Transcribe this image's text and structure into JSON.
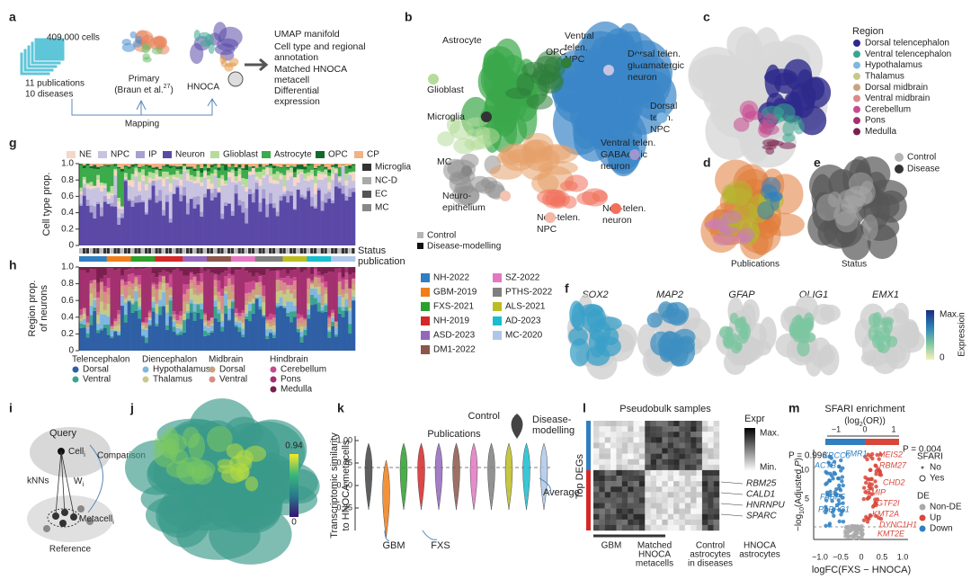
{
  "panel_labels": [
    "a",
    "b",
    "c",
    "d",
    "e",
    "f",
    "g",
    "h",
    "i",
    "j",
    "k",
    "l",
    "m"
  ],
  "a": {
    "cells": "409,000 cells",
    "sources": [
      "11 publications",
      "10 diseases"
    ],
    "primary": "Primary",
    "primary_ref": [
      "(Braun et al.",
      "27",
      ")"
    ],
    "hnoca": "HNOCA",
    "mapping": "Mapping",
    "outputs": [
      "UMAP manifold",
      "Cell type and regional",
      "annotation",
      "Matched HNOCA",
      "metacell",
      "Differential",
      "expression"
    ]
  },
  "b": {
    "labels": [
      "Astrocyte",
      "OPC",
      "Ventral",
      "telen.",
      "NPC",
      "Dorsal telen.",
      "glutamatergic",
      "neuron",
      "Glioblast",
      "Microglia",
      "Dorsal",
      "telen.",
      "NPC",
      "Ventral telen.",
      "GABAergic",
      "neuron",
      "MC",
      "Neuro-",
      "epithelium",
      "Non-telen.",
      "NPC",
      "Non-telen.",
      "neuron"
    ],
    "status_legend": [
      {
        "name": "Control",
        "color": "#b5b5b5"
      },
      {
        "name": "Disease-modelling",
        "color": "#111111"
      }
    ]
  },
  "c": {
    "title": "Region",
    "items": [
      {
        "name": "Dorsal telencephalon",
        "color": "#2e2a8c"
      },
      {
        "name": "Ventral telencephalon",
        "color": "#3aa58f"
      },
      {
        "name": "Hypothalamus",
        "color": "#7fb7e0"
      },
      {
        "name": "Thalamus",
        "color": "#c7c98a"
      },
      {
        "name": "Dorsal midbrain",
        "color": "#c9a37d"
      },
      {
        "name": "Ventral midbrain",
        "color": "#d98a8a"
      },
      {
        "name": "Cerebellum",
        "color": "#c94b8f"
      },
      {
        "name": "Pons",
        "color": "#a3306f"
      },
      {
        "name": "Medulla",
        "color": "#7a1f4d"
      }
    ]
  },
  "d": {
    "caption": "Publications"
  },
  "e": {
    "caption": "Status",
    "legend": [
      {
        "name": "Control",
        "color": "#b5b5b5"
      },
      {
        "name": "Disease",
        "color": "#333333"
      }
    ]
  },
  "f": {
    "genes": [
      "SOX2",
      "MAP2",
      "GFAP",
      "OLIG1",
      "EMX1"
    ],
    "max": "Max.",
    "zero": "0",
    "colorbar_label": "Expression"
  },
  "g": {
    "y_label": "Cell type prop.",
    "yticks": [
      "0",
      "0.2",
      "0.4",
      "0.6",
      "0.8",
      "1.0"
    ],
    "legend_top": [
      {
        "name": "NE",
        "color": "#f6d7c8"
      },
      {
        "name": "NPC",
        "color": "#c8c3e0"
      },
      {
        "name": "IP",
        "color": "#a89fd2"
      },
      {
        "name": "Neuron",
        "color": "#5b49a6"
      },
      {
        "name": "Glioblast",
        "color": "#b5dc9a"
      },
      {
        "name": "Astrocyte",
        "color": "#3cab4a"
      },
      {
        "name": "OPC",
        "color": "#0d6b2e"
      },
      {
        "name": "CP",
        "color": "#f4b183"
      }
    ],
    "legend_side": [
      {
        "name": "Microglia",
        "color": "#333333"
      },
      {
        "name": "NC-D",
        "color": "#aaaaaa"
      },
      {
        "name": "EC",
        "color": "#555555"
      },
      {
        "name": "MC",
        "color": "#888888"
      }
    ],
    "status": "Status",
    "publication": "publication"
  },
  "h": {
    "y_label": [
      "Region prop.",
      "of neurons"
    ],
    "yticks": [
      "0",
      "0.2",
      "0.4",
      "0.6",
      "0.8",
      "1.0"
    ],
    "groups": [
      {
        "name": "Telencephalon",
        "items": [
          {
            "name": "Dorsal",
            "color": "#2f5fa5"
          },
          {
            "name": "Ventral",
            "color": "#3aa58f"
          }
        ]
      },
      {
        "name": "Diencephalon",
        "items": [
          {
            "name": "Hypothalamus",
            "color": "#7fb7e0"
          },
          {
            "name": "Thalamus",
            "color": "#c7c98a"
          }
        ]
      },
      {
        "name": "Midbrain",
        "items": [
          {
            "name": "Dorsal",
            "color": "#c9a37d"
          },
          {
            "name": "Ventral",
            "color": "#d98a8a"
          }
        ]
      },
      {
        "name": "Hindbrain",
        "items": [
          {
            "name": "Cerebellum",
            "color": "#c94b8f"
          },
          {
            "name": "Pons",
            "color": "#a3306f"
          },
          {
            "name": "Medulla",
            "color": "#7a1f4d"
          }
        ]
      }
    ]
  },
  "publications": [
    {
      "name": "NH-2022",
      "color": "#2f7fc1"
    },
    {
      "name": "GBM-2019",
      "color": "#f07f1a"
    },
    {
      "name": "FXS-2021",
      "color": "#2ca02c"
    },
    {
      "name": "NH-2019",
      "color": "#d62728"
    },
    {
      "name": "ASD-2023",
      "color": "#9467bd"
    },
    {
      "name": "DM1-2022",
      "color": "#8c564b"
    },
    {
      "name": "SZ-2022",
      "color": "#e377c2"
    },
    {
      "name": "PTHS-2022",
      "color": "#7f7f7f"
    },
    {
      "name": "ALS-2021",
      "color": "#bcbd22"
    },
    {
      "name": "AD-2023",
      "color": "#17becf"
    },
    {
      "name": "MC-2020",
      "color": "#aec7e8"
    }
  ],
  "i": {
    "query": "Query",
    "cell": [
      "Cell",
      "i"
    ],
    "comparison": "Comparison",
    "knns": "kNNs",
    "weight": [
      "W",
      "i"
    ],
    "metacell": [
      "Metacell",
      "i"
    ],
    "reference": "Reference"
  },
  "j": {
    "max": "0.94",
    "min": "0"
  },
  "k": {
    "y_label": [
      "Transcriptomic similarity",
      "to HNOCA metacells"
    ],
    "yticks": [
      "1.00",
      "0.75",
      "0.50",
      "0.25"
    ],
    "publications": "Publications",
    "control": "Control",
    "disease": [
      "Disease-",
      "modelling"
    ],
    "average": "Average",
    "gbm": "GBM",
    "fxs": "FXS"
  },
  "l": {
    "title": "Pseudobulk samples",
    "expr": "Expr",
    "max": "Max.",
    "min": "Min.",
    "row_label": "Top DEGs",
    "genes": [
      "RBM25",
      "CALD1",
      "HNRNPU",
      "SPARC"
    ],
    "columns": [
      [
        "GBM"
      ],
      [
        "Matched",
        "HNOCA",
        "metacells"
      ],
      [
        "Control",
        "astrocytes",
        "in diseases"
      ],
      [
        "HNOCA",
        "astrocytes"
      ]
    ]
  },
  "m": {
    "title": "SFARI enrichment",
    "subtitle": [
      "(log",
      "2",
      "(OR))"
    ],
    "top_ticks": [
      "−1",
      "0",
      "1"
    ],
    "p_left": "P = 0.996",
    "p_right": "P = 0.004",
    "genes_down": [
      "XRCC6",
      "FMR1",
      "ACTB",
      "FABP5",
      "PABPC1"
    ],
    "genes_up": [
      "MEIS2",
      "RBM27",
      "CHD2",
      "GMIP",
      "GTF2I",
      "KMT2A",
      "DYNC1H1",
      "KMT2E"
    ],
    "sfari": "SFARI",
    "sfari_items": [
      "No",
      "Yes"
    ],
    "de": "DE",
    "de_items": [
      {
        "name": "Non-DE",
        "color": "#aaaaaa"
      },
      {
        "name": "Up",
        "color": "#d9473a"
      },
      {
        "name": "Down",
        "color": "#2f7fc1"
      }
    ],
    "y_label": [
      "−log",
      "10",
      "(Adjusted ",
      "P",
      ")"
    ],
    "yticks": [
      "10",
      "5"
    ],
    "xticks": [
      "−1.0",
      "−0.5",
      "0",
      "0.5",
      "1.0"
    ],
    "x_label": "logFC(FXS − HNOCA)"
  }
}
